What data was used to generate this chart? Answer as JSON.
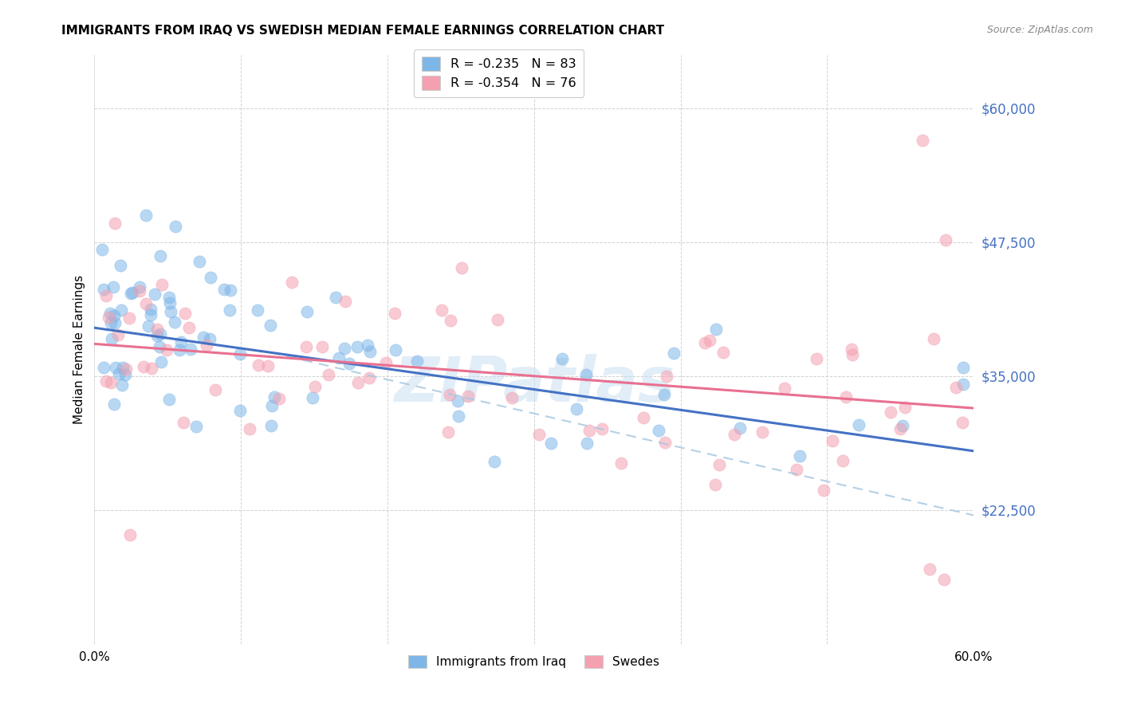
{
  "title": "IMMIGRANTS FROM IRAQ VS SWEDISH MEDIAN FEMALE EARNINGS CORRELATION CHART",
  "source": "Source: ZipAtlas.com",
  "ylabel": "Median Female Earnings",
  "ytick_labels": [
    "$22,500",
    "$35,000",
    "$47,500",
    "$60,000"
  ],
  "ytick_values": [
    22500,
    35000,
    47500,
    60000
  ],
  "ymin": 10000,
  "ymax": 65000,
  "xmin": 0.0,
  "xmax": 0.6,
  "legend_r1": "R = -0.235   N = 83",
  "legend_r2": "R = -0.354   N = 76",
  "color_blue": "#7EB6E8",
  "color_pink": "#F4A0B0",
  "color_line_blue": "#4472C4",
  "color_line_pink": "#E87090",
  "color_line_dashed": "#A8C8E0",
  "watermark": "ZIPatlas"
}
